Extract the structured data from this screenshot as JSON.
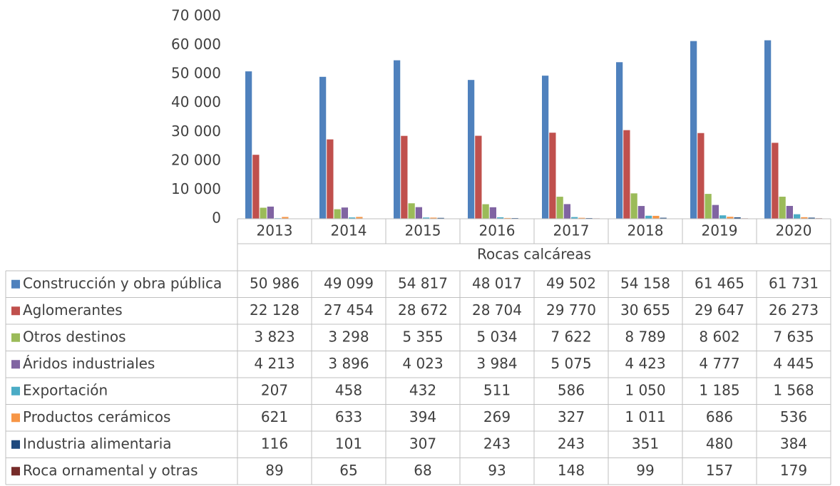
{
  "chart_data": {
    "type": "bar",
    "subtitle": "Rocas calcáreas",
    "categories": [
      "2013",
      "2014",
      "2015",
      "2016",
      "2017",
      "2018",
      "2019",
      "2020"
    ],
    "series": [
      {
        "name": "Construcción y obra pública",
        "color": "#4f81bd",
        "values": [
          50986,
          49099,
          54817,
          48017,
          49502,
          54158,
          61465,
          61731
        ],
        "value_labels": [
          "50 986",
          "49 099",
          "54 817",
          "48 017",
          "49 502",
          "54 158",
          "61 465",
          "61 731"
        ]
      },
      {
        "name": "Aglomerantes",
        "color": "#c0504d",
        "values": [
          22128,
          27454,
          28672,
          28704,
          29770,
          30655,
          29647,
          26273
        ],
        "value_labels": [
          "22 128",
          "27 454",
          "28 672",
          "28 704",
          "29 770",
          "30 655",
          "29 647",
          "26 273"
        ]
      },
      {
        "name": "Otros destinos",
        "color": "#9bbb59",
        "values": [
          3823,
          3298,
          5355,
          5034,
          7622,
          8789,
          8602,
          7635
        ],
        "value_labels": [
          "3 823",
          "3 298",
          "5 355",
          "5 034",
          "7 622",
          "8 789",
          "8 602",
          "7 635"
        ]
      },
      {
        "name": "Áridos industriales",
        "color": "#8064a2",
        "values": [
          4213,
          3896,
          4023,
          3984,
          5075,
          4423,
          4777,
          4445
        ],
        "value_labels": [
          "4 213",
          "3 896",
          "4 023",
          "3 984",
          "5 075",
          "4 423",
          "4 777",
          "4 445"
        ]
      },
      {
        "name": "Exportación",
        "color": "#4bacc6",
        "values": [
          207,
          458,
          432,
          511,
          586,
          1050,
          1185,
          1568
        ],
        "value_labels": [
          "207",
          "458",
          "432",
          "511",
          "586",
          "1 050",
          "1 185",
          "1 568"
        ]
      },
      {
        "name": "Productos cerámicos",
        "color": "#f79646",
        "values": [
          621,
          633,
          394,
          269,
          327,
          1011,
          686,
          536
        ],
        "value_labels": [
          "621",
          "633",
          "394",
          "269",
          "327",
          "1 011",
          "686",
          "536"
        ]
      },
      {
        "name": "Industria alimentaria",
        "color": "#1f497d",
        "values": [
          116,
          101,
          307,
          243,
          243,
          351,
          480,
          384
        ],
        "value_labels": [
          "116",
          "101",
          "307",
          "243",
          "243",
          "351",
          "480",
          "384"
        ]
      },
      {
        "name": "Roca ornamental y otras",
        "color": "#772c2a",
        "values": [
          89,
          65,
          68,
          93,
          148,
          99,
          157,
          179
        ],
        "value_labels": [
          "89",
          "65",
          "68",
          "93",
          "148",
          "99",
          "157",
          "179"
        ]
      }
    ],
    "ylim": [
      0,
      70000
    ],
    "yticks": [
      0,
      {
        "value": 10000,
        "label": "10 000"
      },
      {
        "value": 20000,
        "label": "20 000"
      },
      {
        "value": 30000,
        "label": "30 000"
      },
      {
        "value": 40000,
        "label": "40 000"
      },
      {
        "value": 50000,
        "label": "50 000"
      },
      {
        "value": 60000,
        "label": "60 000"
      },
      {
        "value": 70000,
        "label": "70 000"
      }
    ],
    "grid": false
  }
}
